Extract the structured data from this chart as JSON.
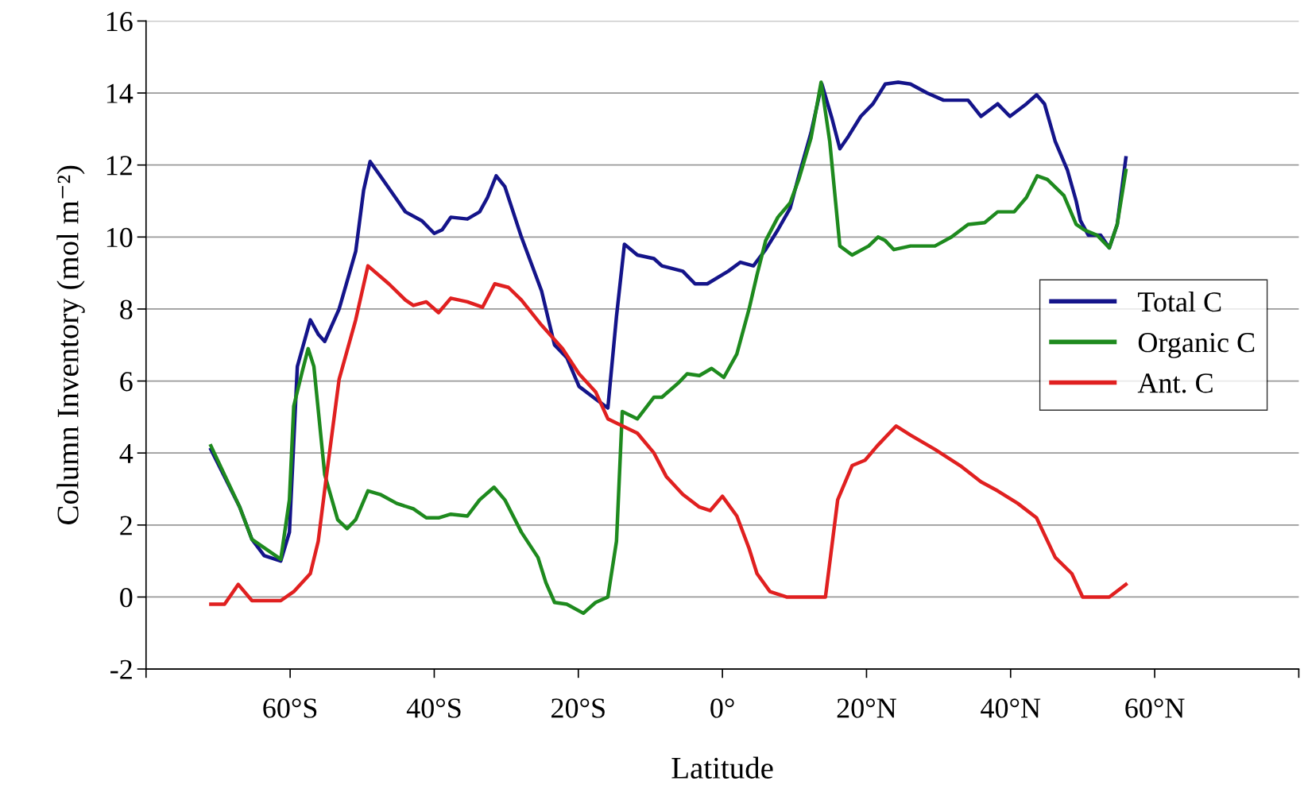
{
  "chart_data": {
    "type": "line",
    "xlabel": "Latitude",
    "ylabel": "Column Inventory (mol m⁻²)",
    "xlim": [
      -80,
      80
    ],
    "xticks": [
      {
        "value": -80,
        "label": null
      },
      {
        "value": -60,
        "label": "60°S"
      },
      {
        "value": -40,
        "label": "40°S"
      },
      {
        "value": -20,
        "label": "20°S"
      },
      {
        "value": 0,
        "label": "0°"
      },
      {
        "value": 20,
        "label": "20°N"
      },
      {
        "value": 40,
        "label": "40°N"
      },
      {
        "value": 60,
        "label": "60°N"
      },
      {
        "value": 80,
        "label": null
      }
    ],
    "ylim": [
      -2,
      16
    ],
    "yticks": [
      -2,
      0,
      2,
      4,
      6,
      8,
      10,
      12,
      14,
      16
    ],
    "grid": "y",
    "legend": "right",
    "marker": "none",
    "line_style": "solid",
    "series": [
      {
        "name": "Total C",
        "color": "#14148a",
        "x": [
          -71,
          -67,
          -65.3,
          -63.6,
          -61.3,
          -60.1,
          -59,
          -57.2,
          -56.1,
          -55.2,
          -53.2,
          -50.9,
          -49.8,
          -48.9,
          -47.5,
          -44,
          -41.7,
          -40,
          -38.9,
          -37.7,
          -35.4,
          -33.7,
          -32.6,
          -31.4,
          -30.2,
          -27.9,
          -25.1,
          -23.3,
          -21.6,
          -19.9,
          -17.6,
          -15.9,
          -14.7,
          -13.6,
          -11.8,
          -9.5,
          -8.4,
          -5.5,
          -3.8,
          -2.1,
          0.8,
          2.5,
          4.3,
          6,
          7.7,
          9.4,
          10.6,
          12.3,
          13.8,
          15.2,
          16.3,
          17.5,
          19.2,
          20.9,
          22.6,
          24.4,
          26.1,
          28.4,
          30.7,
          34.1,
          35.9,
          38.2,
          39.9,
          42.2,
          43.6,
          44.7,
          46.2,
          47.9,
          49.1,
          49.7,
          50.8,
          52.5,
          53.7,
          54.8,
          56
        ],
        "values": [
          4.1,
          2.5,
          1.6,
          1.15,
          1.0,
          1.8,
          6.4,
          7.7,
          7.3,
          7.1,
          8.0,
          9.6,
          11.3,
          12.1,
          11.7,
          10.7,
          10.45,
          10.1,
          10.2,
          10.55,
          10.5,
          10.7,
          11.1,
          11.7,
          11.4,
          10.0,
          8.5,
          7.0,
          6.65,
          5.85,
          5.5,
          5.25,
          7.8,
          9.8,
          9.5,
          9.4,
          9.2,
          9.05,
          8.7,
          8.7,
          9.05,
          9.3,
          9.2,
          9.65,
          10.2,
          10.8,
          11.7,
          12.9,
          14.25,
          13.3,
          12.45,
          12.8,
          13.35,
          13.7,
          14.25,
          14.3,
          14.25,
          14.0,
          13.8,
          13.8,
          13.35,
          13.7,
          13.35,
          13.7,
          13.95,
          13.7,
          12.65,
          11.85,
          11.0,
          10.45,
          10.05,
          10.05,
          9.7,
          10.35,
          12.2
        ]
      },
      {
        "name": "Organic C",
        "color": "#1e8a1e",
        "x": [
          -71,
          -67,
          -65.3,
          -61.3,
          -60.1,
          -59.5,
          -58.4,
          -57.5,
          -56.7,
          -55.2,
          -53.4,
          -52.1,
          -50.9,
          -49.2,
          -47.5,
          -45.2,
          -42.9,
          -41.1,
          -39.4,
          -37.7,
          -35.4,
          -33.7,
          -31.7,
          -30.2,
          -27.9,
          -25.6,
          -24.5,
          -23.3,
          -21.6,
          -19.3,
          -17.6,
          -15.9,
          -14.7,
          -13.9,
          -11.8,
          -9.5,
          -8.4,
          -6.1,
          -4.9,
          -3.2,
          -1.5,
          0.2,
          2.0,
          3.7,
          4.8,
          6,
          7.7,
          9.4,
          10.6,
          12.3,
          13.7,
          14.9,
          16.3,
          18.0,
          20.3,
          21.6,
          22.6,
          23.8,
          26.1,
          29.5,
          31.8,
          34.1,
          36.4,
          38.2,
          40.5,
          42.2,
          43.7,
          45.1,
          47.4,
          49.1,
          50.2,
          52,
          53.7,
          54.8,
          56
        ],
        "values": [
          4.2,
          2.5,
          1.6,
          1.05,
          2.7,
          5.3,
          6.2,
          6.9,
          6.4,
          3.4,
          2.15,
          1.9,
          2.15,
          2.95,
          2.85,
          2.6,
          2.45,
          2.2,
          2.2,
          2.3,
          2.25,
          2.7,
          3.05,
          2.7,
          1.8,
          1.1,
          0.4,
          -0.15,
          -0.2,
          -0.45,
          -0.15,
          0.0,
          1.55,
          5.15,
          4.95,
          5.55,
          5.55,
          5.95,
          6.2,
          6.15,
          6.35,
          6.1,
          6.75,
          8.0,
          8.95,
          9.9,
          10.55,
          10.95,
          11.6,
          12.75,
          14.3,
          12.65,
          9.75,
          9.5,
          9.75,
          10.0,
          9.9,
          9.65,
          9.75,
          9.75,
          10.0,
          10.35,
          10.4,
          10.7,
          10.7,
          11.1,
          11.7,
          11.6,
          11.15,
          10.35,
          10.2,
          10.05,
          9.7,
          10.35,
          11.85
        ]
      },
      {
        "name": "Ant. C",
        "color": "#e02020",
        "x": [
          -71,
          -69.1,
          -67.2,
          -65.3,
          -61.3,
          -59.5,
          -57.2,
          -56.1,
          -55,
          -53.2,
          -50.9,
          -49.2,
          -46.3,
          -44,
          -42.9,
          -41.1,
          -39.4,
          -37.7,
          -35.4,
          -33.3,
          -31.6,
          -29.7,
          -27.9,
          -25.1,
          -22.2,
          -19.9,
          -17.6,
          -15.9,
          -11.8,
          -9.5,
          -7.8,
          -5.5,
          -3.2,
          -1.7,
          0,
          2.0,
          3.7,
          4.8,
          6.6,
          8.9,
          11.7,
          14.3,
          16.0,
          18.0,
          19.8,
          21.5,
          24.1,
          26.1,
          29.5,
          33,
          35.9,
          38.2,
          41.0,
          43.6,
          46.2,
          48.5,
          50,
          53.7,
          56
        ],
        "values": [
          -0.2,
          -0.2,
          0.35,
          -0.1,
          -0.1,
          0.15,
          0.65,
          1.55,
          3.3,
          6.05,
          7.7,
          9.2,
          8.7,
          8.25,
          8.1,
          8.2,
          7.9,
          8.3,
          8.2,
          8.05,
          8.7,
          8.6,
          8.25,
          7.55,
          6.9,
          6.2,
          5.7,
          4.95,
          4.55,
          4.0,
          3.35,
          2.85,
          2.5,
          2.4,
          2.8,
          2.25,
          1.35,
          0.65,
          0.15,
          0,
          0,
          0,
          2.7,
          3.65,
          3.8,
          4.2,
          4.75,
          4.5,
          4.1,
          3.65,
          3.2,
          2.95,
          2.6,
          2.2,
          1.1,
          0.65,
          0,
          0,
          0.35
        ]
      }
    ]
  }
}
